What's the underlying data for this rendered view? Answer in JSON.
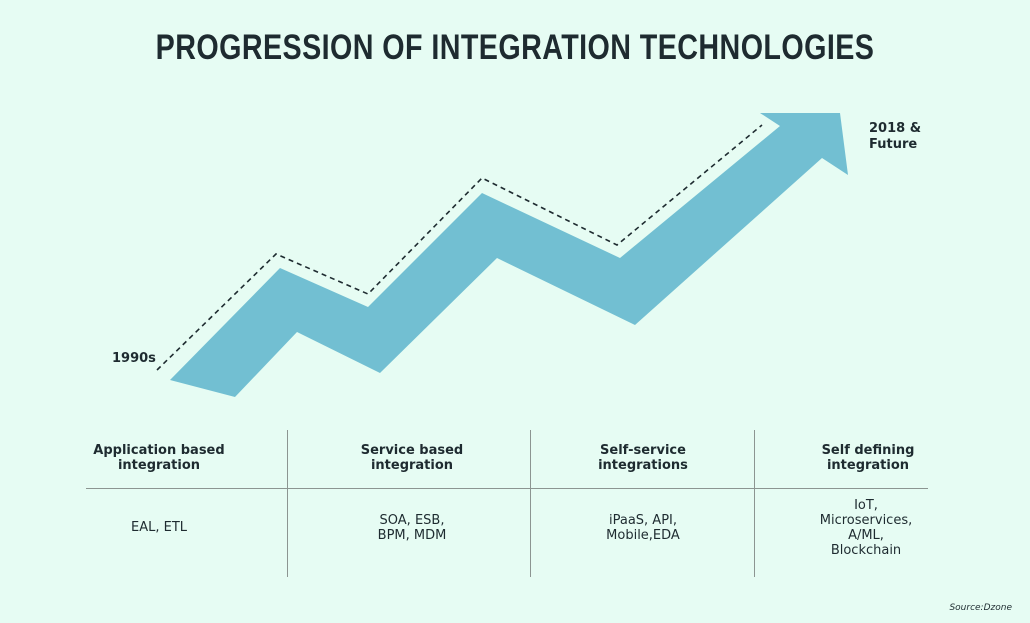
{
  "title": "PROGRESSION OF INTEGRATION TECHNOLOGIES",
  "start_label": "1990s",
  "end_label": "2018 &\nFuture",
  "colors": {
    "background": "#e6fcf3",
    "arrow": "#72bfd2",
    "text": "#1e2b30"
  },
  "columns": [
    {
      "heading": "Application based\nintegration",
      "items": "EAL, ETL"
    },
    {
      "heading": "Service based\nintegration",
      "items": "SOA, ESB,\nBPM, MDM"
    },
    {
      "heading": "Self-service\nintegrations",
      "items": "iPaaS, API,\nMobile,EDA"
    },
    {
      "heading": "Self defining\nintegration",
      "items": "IoT,\nMicroservices,\nA/ML,\nBlockchain"
    }
  ],
  "source": "Source:Dzone"
}
